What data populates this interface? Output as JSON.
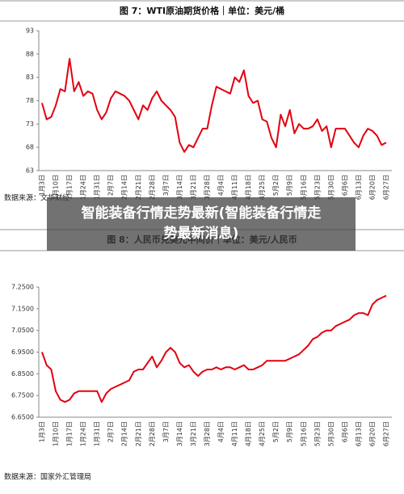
{
  "overlay_title": "智能装备行情走势最新(智能装备行情走势最新消息)",
  "chart_data": [
    {
      "type": "line",
      "title": "图 7：WTI原油期货价格｜单位：美元/桶",
      "source": "数据来源：文华财经",
      "categories": [
        "1月3日",
        null,
        null,
        "1月10日",
        null,
        null,
        "1月17日",
        null,
        null,
        "1月24日",
        null,
        null,
        "1月31日",
        null,
        null,
        "2月7日",
        null,
        null,
        "2月14日",
        null,
        null,
        "2月21日",
        null,
        null,
        "2月28日",
        null,
        null,
        "3月7日",
        null,
        null,
        "3月14日",
        null,
        null,
        "3月21日",
        null,
        null,
        "3月28日",
        null,
        null,
        "4月4日",
        null,
        null,
        "4月11日",
        null,
        null,
        "4月18日",
        null,
        null,
        "4月25日",
        null,
        null,
        "5月2日",
        null,
        null,
        "5月9日",
        null,
        null,
        "5月16日",
        null,
        null,
        "5月23日",
        null,
        null,
        "5月30日",
        null,
        null,
        "6月6日",
        null,
        null,
        "6月13日",
        null,
        null,
        "6月20日",
        null,
        null,
        "6月27日"
      ],
      "series": [
        {
          "color": "#e3000f",
          "values": [
            77.5,
            74,
            74.5,
            77,
            80.5,
            80,
            87,
            80,
            82,
            79,
            80,
            79.5,
            76,
            74,
            75.5,
            78.5,
            80,
            79.5,
            79,
            78,
            76,
            74,
            77,
            76,
            78.5,
            80,
            78,
            77,
            76,
            74.5,
            69,
            67,
            68.5,
            68,
            70,
            72,
            72,
            77,
            81,
            80.5,
            80,
            79.5,
            83,
            82,
            84.5,
            79,
            77.5,
            78,
            74,
            73.5,
            70,
            68,
            75,
            72.5,
            76,
            71,
            73,
            72,
            72,
            72.5,
            74,
            71.5,
            72.5,
            68,
            72,
            72,
            72,
            70.5,
            69,
            68,
            70.5,
            72,
            71.5,
            70.5,
            68.5,
            69
          ]
        }
      ],
      "ylim": [
        63,
        93
      ],
      "yticks": [
        63,
        68,
        73,
        78,
        83,
        88,
        93
      ]
    },
    {
      "type": "line",
      "title": "图 8：人民币兑美元中间价｜单位：美元/人民币",
      "source": "数据来源：国家外汇管理局",
      "categories": [
        "1月3日",
        null,
        null,
        "1月10日",
        null,
        null,
        "1月17日",
        null,
        null,
        "1月24日",
        null,
        null,
        "1月31日",
        null,
        null,
        "2月7日",
        null,
        null,
        "2月14日",
        null,
        null,
        "2月21日",
        null,
        null,
        "2月28日",
        null,
        null,
        "3月7日",
        null,
        null,
        "3月14日",
        null,
        null,
        "3月21日",
        null,
        null,
        "3月28日",
        null,
        null,
        "4月4日",
        null,
        null,
        "4月11日",
        null,
        null,
        "4月18日",
        null,
        null,
        "4月25日",
        null,
        null,
        "5月2日",
        null,
        null,
        "5月9日",
        null,
        null,
        "5月16日",
        null,
        null,
        "5月23日",
        null,
        null,
        "5月30日",
        null,
        null,
        "6月6日",
        null,
        null,
        "6月13日",
        null,
        null,
        "6月20日",
        null,
        null,
        "6月27日"
      ],
      "series": [
        {
          "color": "#e3000f",
          "values": [
            6.95,
            6.89,
            6.87,
            6.77,
            6.73,
            6.72,
            6.73,
            6.76,
            6.77,
            6.77,
            6.77,
            6.77,
            6.77,
            6.72,
            6.76,
            6.78,
            6.79,
            6.8,
            6.81,
            6.82,
            6.86,
            6.87,
            6.87,
            6.9,
            6.93,
            6.88,
            6.91,
            6.95,
            6.97,
            6.95,
            6.9,
            6.88,
            6.89,
            6.86,
            6.84,
            6.86,
            6.87,
            6.87,
            6.88,
            6.87,
            6.88,
            6.88,
            6.87,
            6.88,
            6.89,
            6.87,
            6.87,
            6.88,
            6.89,
            6.91,
            6.91,
            6.91,
            6.91,
            6.91,
            6.92,
            6.93,
            6.94,
            6.96,
            6.98,
            7.01,
            7.02,
            7.04,
            7.05,
            7.05,
            7.07,
            7.08,
            7.09,
            7.1,
            7.12,
            7.13,
            7.13,
            7.12,
            7.17,
            7.19,
            7.2,
            7.21
          ]
        }
      ],
      "ylim": [
        6.65,
        7.25
      ],
      "yticks": [
        {
          "value": 6.65,
          "label": "6.6500"
        },
        {
          "value": 6.75,
          "label": "6.7500"
        },
        {
          "value": 6.85,
          "label": "6.8500"
        },
        {
          "value": 6.95,
          "label": "6.9500"
        },
        {
          "value": 7.05,
          "label": "7.0500"
        },
        {
          "value": 7.15,
          "label": "7.1500"
        },
        {
          "value": 7.25,
          "label": "7.2500"
        }
      ]
    }
  ]
}
